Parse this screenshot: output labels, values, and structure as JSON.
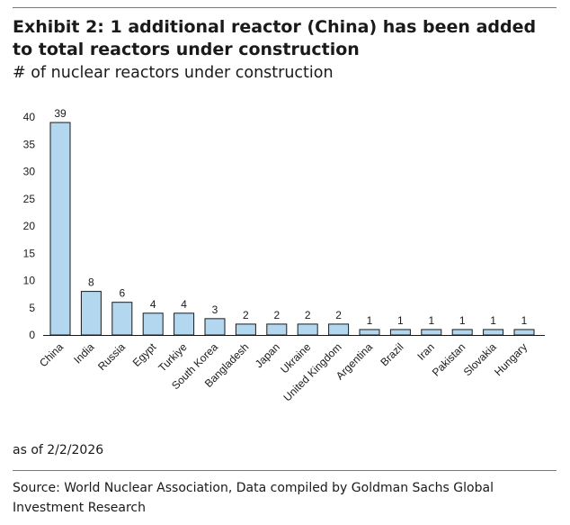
{
  "header": {
    "title": "Exhibit 2: 1 additional reactor (China) has been added to total reactors under construction",
    "subtitle": "# of nuclear reactors under construction"
  },
  "footer": {
    "as_of": "as of 2/2/2026",
    "source": "Source: World Nuclear Association, Data compiled by Goldman Sachs Global Investment Research"
  },
  "colors": {
    "bar_fill": "#b4d7f0",
    "bar_stroke": "#1a1a1a",
    "text": "#1a1a1a",
    "rule": "#7a7a7a"
  },
  "chart_data": {
    "type": "bar",
    "categories": [
      "China",
      "India",
      "Russia",
      "Egypt",
      "Turkiye",
      "South Korea",
      "Bangladesh",
      "Japan",
      "Ukraine",
      "United Kingdom",
      "Argentina",
      "Brazil",
      "Iran",
      "Pakistan",
      "Slovakia",
      "Hungary"
    ],
    "values": [
      39,
      8,
      6,
      4,
      4,
      3,
      2,
      2,
      2,
      2,
      1,
      1,
      1,
      1,
      1,
      1
    ],
    "data_labels": true,
    "ylim": [
      0,
      40
    ],
    "yticks": [
      0,
      5,
      10,
      15,
      20,
      25,
      30,
      35,
      40
    ],
    "grid": false,
    "legend": "none",
    "xlabel": "",
    "ylabel": ""
  }
}
